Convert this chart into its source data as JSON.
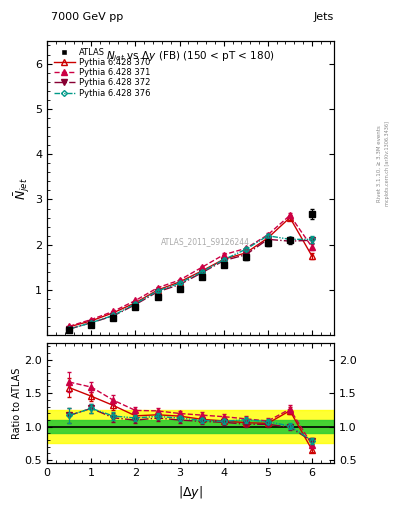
{
  "title_top": "7000 GeV pp",
  "title_top_right": "Jets",
  "plot_title": "N$_{jet}$ vs $\\Delta y$ (FB) (150 < pT < 180)",
  "watermark": "ATLAS_2011_S9126244",
  "right_label": "Rivet 3.1.10, ≥ 3.3M events",
  "right_label2": "mcplots.cern.ch [arXiv:1306.3436]",
  "xlabel": "|$\\Delta y$|",
  "ylabel_main": "$\\bar{N}_{jet}$",
  "ylabel_ratio": "Ratio to ATLAS",
  "x": [
    0.5,
    1.0,
    1.5,
    2.0,
    2.5,
    3.0,
    3.5,
    4.0,
    4.5,
    5.0,
    5.5,
    6.0
  ],
  "atlas_y": [
    0.12,
    0.22,
    0.38,
    0.62,
    0.85,
    1.02,
    1.28,
    1.55,
    1.72,
    2.05,
    2.1,
    2.68
  ],
  "atlas_yerr": [
    0.01,
    0.01,
    0.02,
    0.02,
    0.03,
    0.03,
    0.04,
    0.05,
    0.06,
    0.07,
    0.08,
    0.12
  ],
  "py370_y": [
    0.19,
    0.32,
    0.5,
    0.72,
    1.0,
    1.18,
    1.42,
    1.68,
    1.82,
    2.15,
    2.6,
    1.75
  ],
  "py370_yerr": [
    0.005,
    0.005,
    0.01,
    0.01,
    0.015,
    0.02,
    0.025,
    0.03,
    0.035,
    0.04,
    0.05,
    0.06
  ],
  "py371_y": [
    0.2,
    0.35,
    0.53,
    0.77,
    1.05,
    1.22,
    1.5,
    1.78,
    1.92,
    2.22,
    2.65,
    1.95
  ],
  "py371_yerr": [
    0.005,
    0.005,
    0.01,
    0.015,
    0.02,
    0.025,
    0.03,
    0.035,
    0.04,
    0.045,
    0.055,
    0.07
  ],
  "py372_y": [
    0.14,
    0.28,
    0.43,
    0.68,
    0.96,
    1.12,
    1.38,
    1.65,
    1.78,
    2.12,
    2.08,
    2.1
  ],
  "py372_yerr": [
    0.005,
    0.005,
    0.01,
    0.01,
    0.015,
    0.02,
    0.025,
    0.03,
    0.035,
    0.04,
    0.05,
    0.07
  ],
  "py376_y": [
    0.14,
    0.28,
    0.44,
    0.7,
    0.98,
    1.15,
    1.4,
    1.67,
    1.9,
    2.2,
    2.12,
    2.12
  ],
  "py376_yerr": [
    0.005,
    0.005,
    0.01,
    0.01,
    0.015,
    0.02,
    0.025,
    0.03,
    0.035,
    0.04,
    0.05,
    0.07
  ],
  "ylim_main": [
    0.0,
    6.5
  ],
  "ylim_ratio": [
    0.45,
    2.25
  ],
  "yticks_main": [
    1,
    2,
    3,
    4,
    5,
    6
  ],
  "yticks_ratio": [
    0.5,
    1.0,
    1.5,
    2.0
  ],
  "color_atlas": "#000000",
  "color_370": "#cc0000",
  "color_371": "#cc0044",
  "color_372": "#880033",
  "color_376": "#009988",
  "green_band_lower": 0.9,
  "green_band_upper": 1.1,
  "yellow_band_lower": 0.75,
  "yellow_band_upper": 1.25
}
